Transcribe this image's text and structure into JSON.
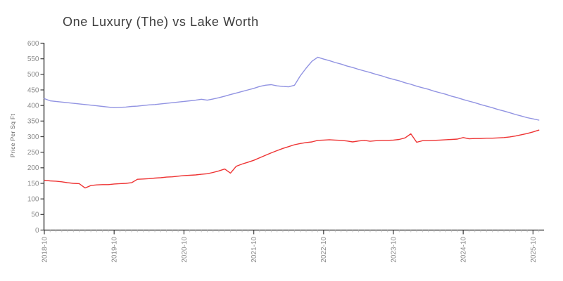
{
  "page": {
    "background": "#ffffff"
  },
  "chart_data": {
    "type": "line",
    "title": "One Luxury (The) vs Lake Worth",
    "xlabel": "",
    "ylabel": "Price Per Sq Ft",
    "ylim": [
      0,
      600
    ],
    "y_tick_step": 50,
    "y_tick_labels": [
      "0",
      "50",
      "100",
      "150",
      "200",
      "250",
      "300",
      "350",
      "400",
      "450",
      "500",
      "550",
      "600"
    ],
    "grid": false,
    "legend_position": "none",
    "x_major_tick_labels": [
      "2018-10",
      "2019-10",
      "2020-10",
      "2021-10",
      "2022-10",
      "2023-10",
      "2024-10",
      "2025-10"
    ],
    "x": [
      "2018-10",
      "2018-11",
      "2018-12",
      "2019-01",
      "2019-02",
      "2019-03",
      "2019-04",
      "2019-05",
      "2019-06",
      "2019-07",
      "2019-08",
      "2019-09",
      "2019-10",
      "2019-11",
      "2019-12",
      "2020-01",
      "2020-02",
      "2020-03",
      "2020-04",
      "2020-05",
      "2020-06",
      "2020-07",
      "2020-08",
      "2020-09",
      "2020-10",
      "2020-11",
      "2020-12",
      "2021-01",
      "2021-02",
      "2021-03",
      "2021-04",
      "2021-05",
      "2021-06",
      "2021-07",
      "2021-08",
      "2021-09",
      "2021-10",
      "2021-11",
      "2021-12",
      "2022-01",
      "2022-02",
      "2022-03",
      "2022-04",
      "2022-05",
      "2022-06",
      "2022-07",
      "2022-08",
      "2022-09",
      "2022-10",
      "2022-11",
      "2022-12",
      "2023-01",
      "2023-02",
      "2023-03",
      "2023-04",
      "2023-05",
      "2023-06",
      "2023-07",
      "2023-08",
      "2023-09",
      "2023-10",
      "2023-11",
      "2023-12",
      "2024-01",
      "2024-02",
      "2024-03",
      "2024-04",
      "2024-05",
      "2024-06",
      "2024-07",
      "2024-08",
      "2024-09",
      "2024-10",
      "2024-11",
      "2024-12",
      "2025-01",
      "2025-02",
      "2025-03",
      "2025-04",
      "2025-05",
      "2025-06",
      "2025-07",
      "2025-08",
      "2025-09",
      "2025-10",
      "2025-11"
    ],
    "series": [
      {
        "name": "One Luxury (The)",
        "color": "#9193e2",
        "values": [
          422,
          415,
          413,
          411,
          409,
          407,
          405,
          403,
          401,
          399,
          397,
          395,
          393,
          394,
          395,
          397,
          398,
          400,
          402,
          403,
          405,
          407,
          409,
          411,
          413,
          415,
          417,
          420,
          417,
          421,
          425,
          430,
          435,
          440,
          445,
          450,
          455,
          461,
          465,
          467,
          463,
          461,
          460,
          465,
          495,
          520,
          542,
          555,
          549,
          544,
          538,
          533,
          527,
          522,
          516,
          511,
          506,
          500,
          495,
          489,
          484,
          479,
          473,
          468,
          462,
          457,
          452,
          446,
          441,
          436,
          430,
          425,
          419,
          414,
          409,
          403,
          398,
          393,
          387,
          382,
          377,
          371,
          366,
          361,
          357,
          353
        ]
      },
      {
        "name": "Lake Worth",
        "color": "#ee3333",
        "values": [
          160,
          158,
          157,
          155,
          152,
          150,
          149,
          135,
          143,
          145,
          146,
          146,
          148,
          149,
          150,
          152,
          163,
          164,
          165,
          167,
          168,
          170,
          171,
          173,
          175,
          176,
          177,
          179,
          181,
          185,
          190,
          196,
          183,
          205,
          212,
          218,
          224,
          232,
          240,
          248,
          255,
          262,
          268,
          274,
          278,
          281,
          283,
          288,
          289,
          290,
          289,
          288,
          286,
          283,
          286,
          288,
          285,
          287,
          288,
          288,
          289,
          291,
          296,
          309,
          282,
          287,
          287,
          288,
          289,
          290,
          291,
          292,
          297,
          293,
          294,
          294,
          295,
          295,
          296,
          297,
          299,
          302,
          306,
          310,
          315,
          321
        ]
      }
    ],
    "colors": {
      "axis": "#1f1f1f",
      "major_tick": "#4a4a4a",
      "minor_tick": "#c8c8c8",
      "tick_label": "#8a8a8a",
      "title": "#3d3d3d"
    }
  }
}
